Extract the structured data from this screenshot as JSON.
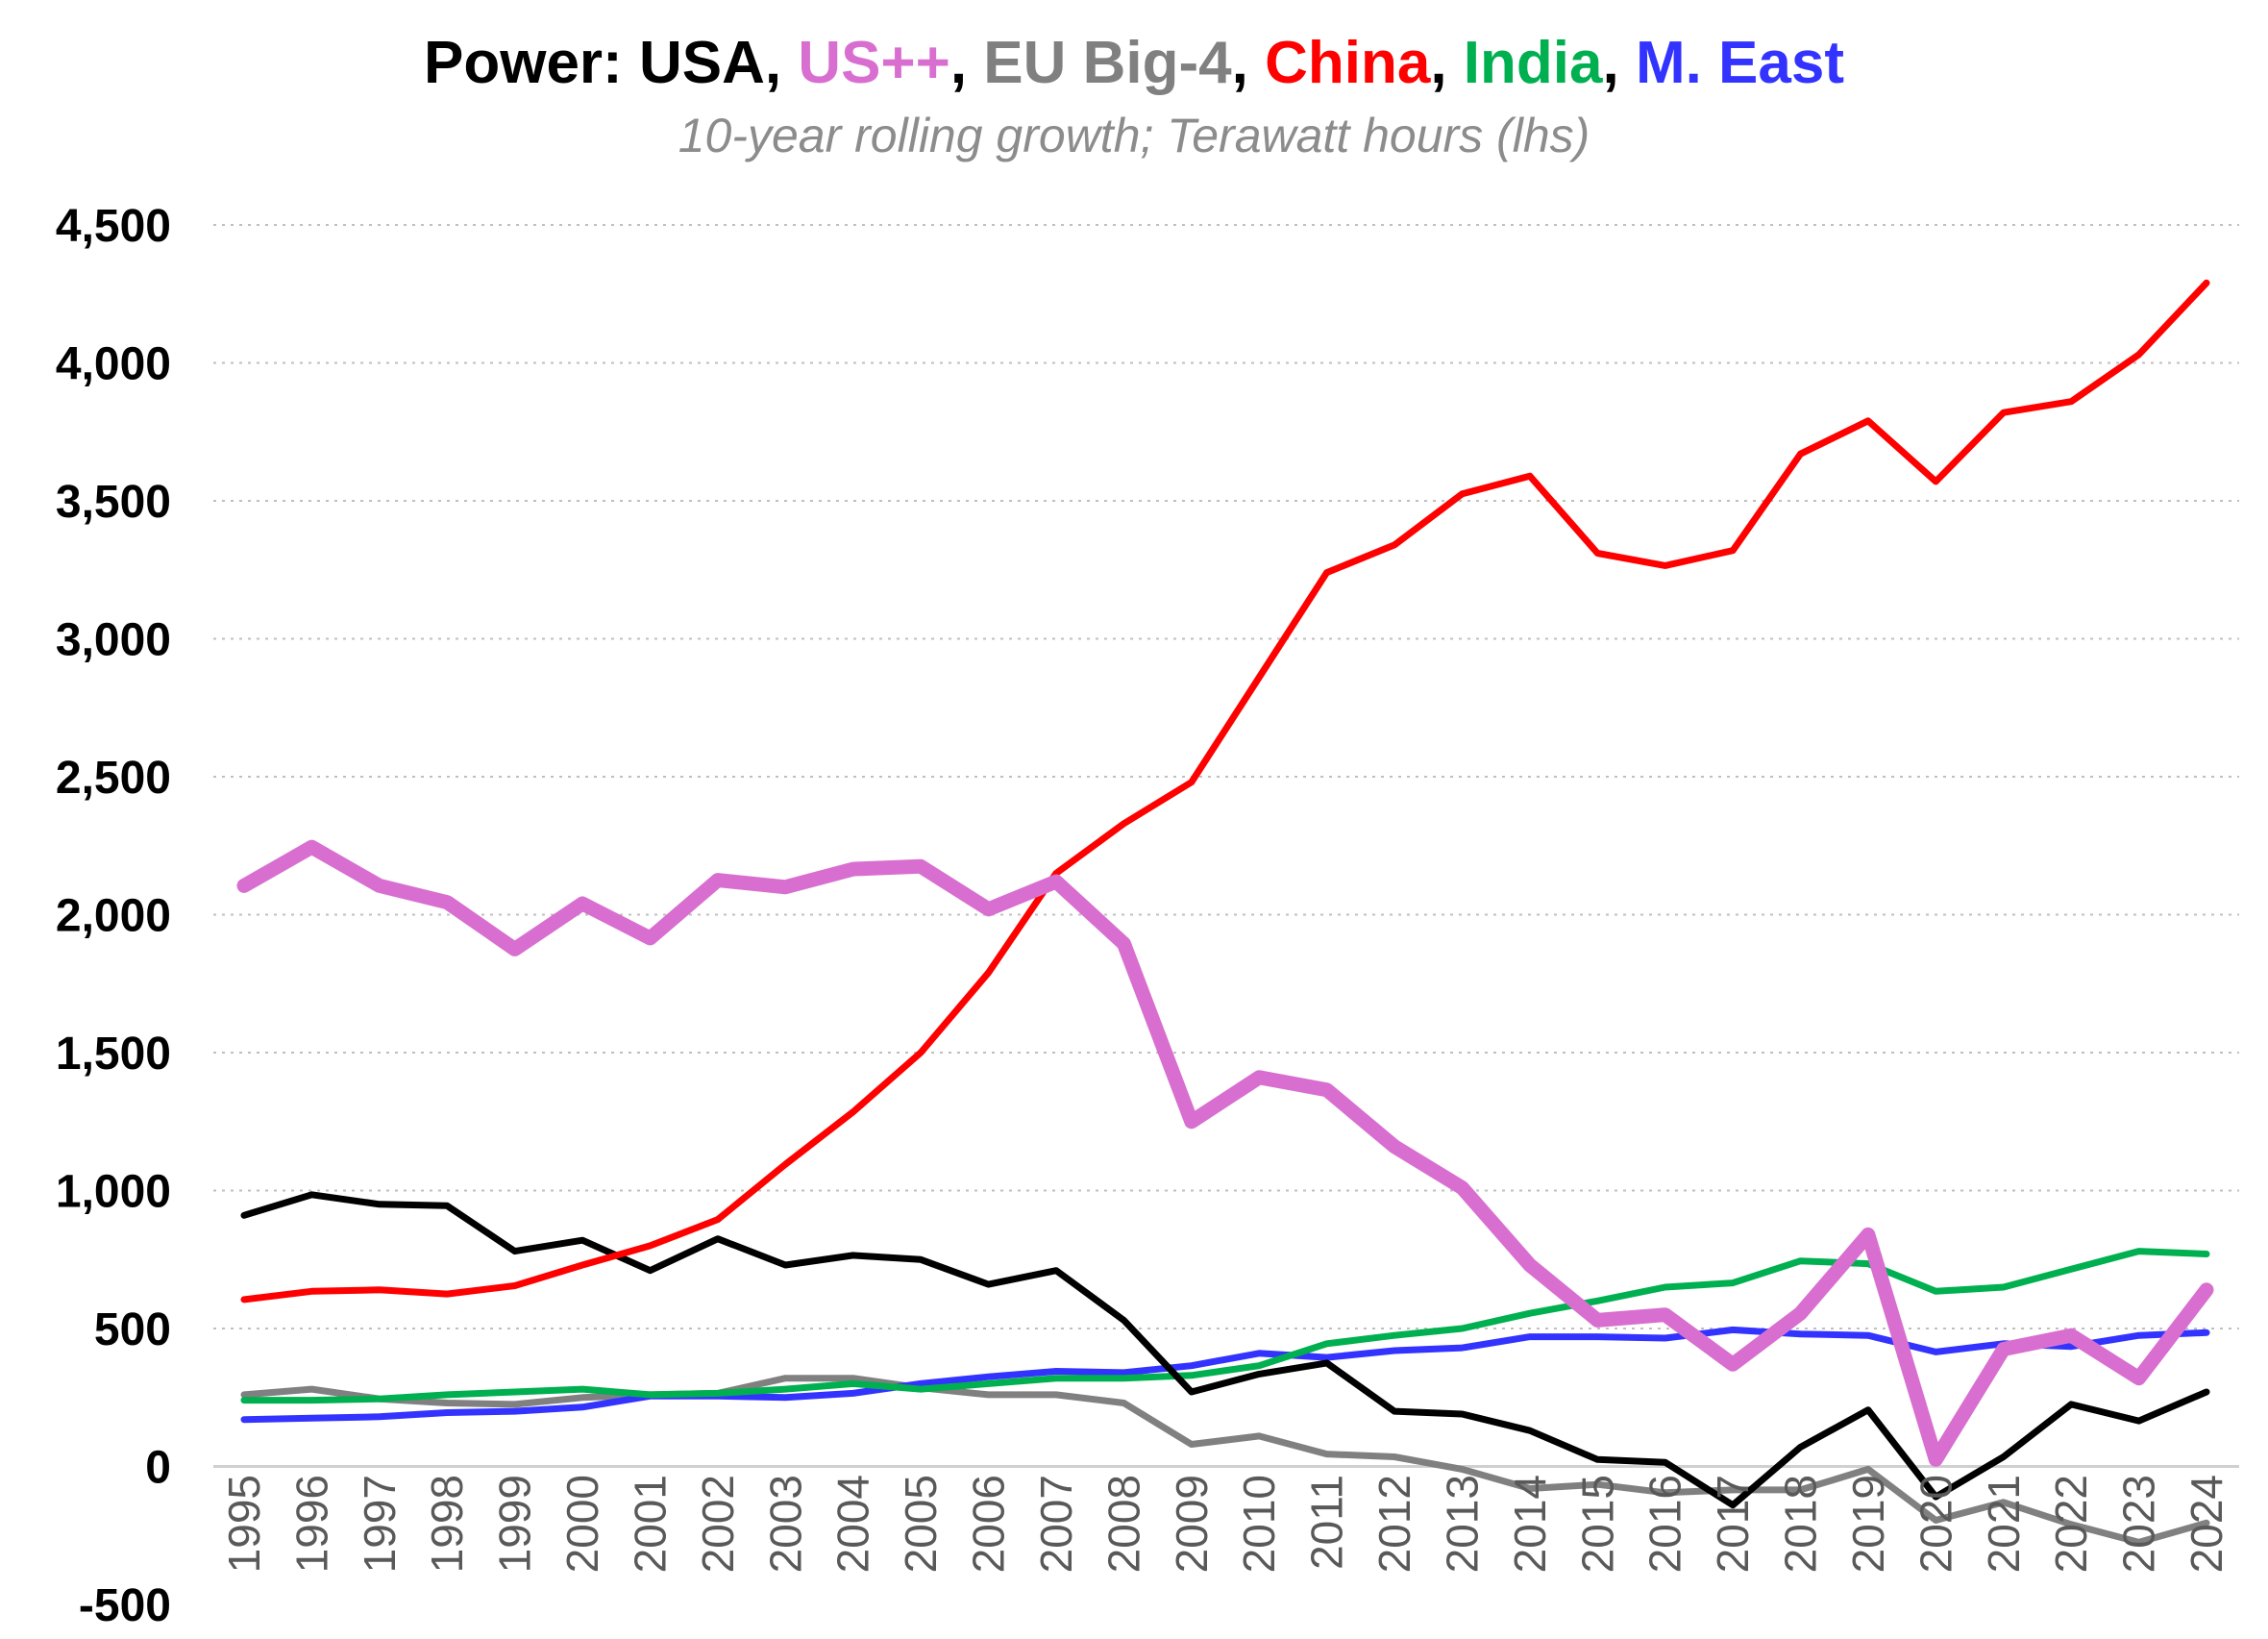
{
  "chart_data": {
    "type": "line",
    "title_parts": [
      {
        "text": "Power: ",
        "color": "#000000"
      },
      {
        "text": "USA",
        "color": "#000000"
      },
      {
        "text": ", ",
        "color": "#000000"
      },
      {
        "text": "US++",
        "color": "#d86fd0"
      },
      {
        "text": ", ",
        "color": "#000000"
      },
      {
        "text": "EU Big-4",
        "color": "#808080"
      },
      {
        "text": ", ",
        "color": "#000000"
      },
      {
        "text": "China",
        "color": "#ff0000"
      },
      {
        "text": ", ",
        "color": "#000000"
      },
      {
        "text": "India",
        "color": "#00b050"
      },
      {
        "text": ", ",
        "color": "#000000"
      },
      {
        "text": "M. East",
        "color": "#3333ff"
      }
    ],
    "subtitle": "10-year rolling growth; Terawatt hours (lhs)",
    "ylim": [
      -500,
      4500
    ],
    "yticks": [
      -500,
      0,
      500,
      1000,
      1500,
      2000,
      2500,
      3000,
      3500,
      4000,
      4500
    ],
    "ytick_labels": [
      "-500",
      "0",
      "500",
      "1,000",
      "1,500",
      "2,000",
      "2,500",
      "3,000",
      "3,500",
      "4,000",
      "4,500"
    ],
    "grid": true,
    "categories": [
      "1995",
      "1996",
      "1997",
      "1998",
      "1999",
      "2000",
      "2001",
      "2002",
      "2003",
      "2004",
      "2005",
      "2006",
      "2007",
      "2008",
      "2009",
      "2010",
      "2011",
      "2012",
      "2013",
      "2014",
      "2015",
      "2016",
      "2017",
      "2018",
      "2019",
      "2020",
      "2021",
      "2022",
      "2023",
      "2024"
    ],
    "series": [
      {
        "name": "EU Big-4",
        "color": "#808080",
        "thick": false,
        "values": [
          260,
          280,
          245,
          230,
          225,
          250,
          260,
          265,
          320,
          320,
          285,
          260,
          260,
          230,
          80,
          110,
          45,
          35,
          -10,
          -80,
          -65,
          -95,
          -85,
          -85,
          -10,
          -195,
          -130,
          -210,
          -275,
          -205
        ]
      },
      {
        "name": "M. East",
        "color": "#3333ff",
        "thick": false,
        "values": [
          170,
          175,
          180,
          195,
          200,
          215,
          255,
          255,
          250,
          265,
          300,
          325,
          345,
          340,
          365,
          410,
          395,
          420,
          430,
          470,
          470,
          465,
          495,
          480,
          475,
          415,
          445,
          435,
          475,
          485
        ]
      },
      {
        "name": "India",
        "color": "#00b050",
        "thick": false,
        "values": [
          240,
          240,
          245,
          260,
          270,
          280,
          260,
          265,
          280,
          300,
          280,
          300,
          320,
          320,
          330,
          365,
          445,
          475,
          500,
          555,
          600,
          650,
          665,
          745,
          735,
          635,
          650,
          715,
          780,
          770
        ]
      },
      {
        "name": "USA",
        "color": "#000000",
        "thick": false,
        "values": [
          910,
          985,
          950,
          945,
          780,
          820,
          710,
          825,
          730,
          765,
          750,
          660,
          710,
          530,
          270,
          335,
          375,
          200,
          190,
          130,
          25,
          15,
          -140,
          70,
          205,
          -110,
          35,
          225,
          165,
          270
        ]
      },
      {
        "name": "China",
        "color": "#ff0000",
        "thick": false,
        "values": [
          605,
          635,
          640,
          625,
          655,
          730,
          800,
          895,
          1095,
          1285,
          1500,
          1790,
          2150,
          2330,
          2480,
          2860,
          3240,
          3340,
          3525,
          3590,
          3310,
          3265,
          3320,
          3670,
          3790,
          3570,
          3820,
          3860,
          4030,
          4290
        ]
      },
      {
        "name": "US++",
        "color": "#d86fd0",
        "thick": true,
        "values": [
          2105,
          2245,
          2105,
          2045,
          1875,
          2040,
          1915,
          2125,
          2100,
          2165,
          2175,
          2020,
          2120,
          1895,
          1250,
          1410,
          1365,
          1160,
          1010,
          730,
          530,
          550,
          370,
          555,
          840,
          25,
          425,
          475,
          320,
          640
        ]
      }
    ]
  }
}
